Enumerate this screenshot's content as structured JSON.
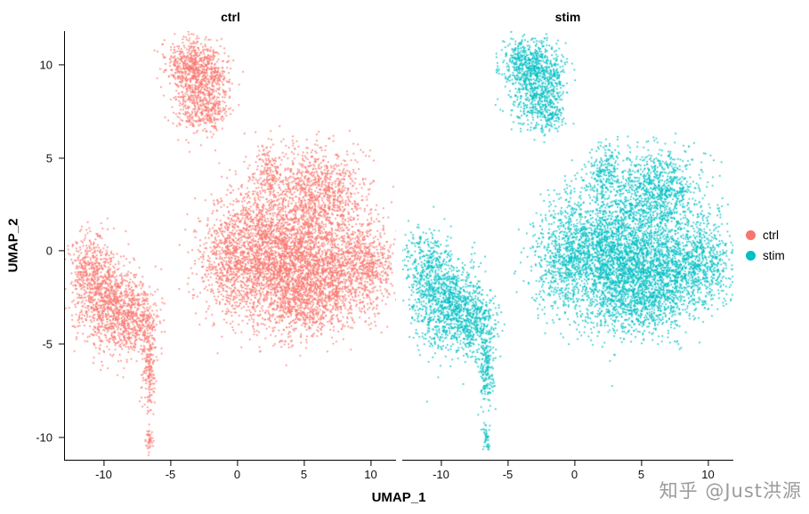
{
  "chart_data": {
    "type": "scatter",
    "title": "",
    "xlabel": "UMAP_1",
    "ylabel": "UMAP_2",
    "xlim": [
      -12.9,
      11.9
    ],
    "ylim": [
      -11.2,
      11.8
    ],
    "xticks": [
      -10,
      -5,
      0,
      5,
      10
    ],
    "yticks": [
      -10,
      -5,
      0,
      5,
      10
    ],
    "grid": false,
    "legend_position": "right",
    "facets": [
      {
        "label": "ctrl",
        "color": "#F8766D"
      },
      {
        "label": "stim",
        "color": "#00BFC4"
      }
    ],
    "legend": [
      {
        "label": "ctrl",
        "color": "#F8766D"
      },
      {
        "label": "stim",
        "color": "#00BFC4"
      }
    ],
    "description": "Single-cell UMAP embedding split into two facets (ctrl vs stim). Same cluster topology in both panels: a small blob at top around (-3, 9), one large central/right mass around (2..10, -4..5) with an upper-right lobe, a left cluster around (-9.5, -3) with a thin vertical tail down to y=-8.5, a tiny sliver near (-6.6, -10), and a couple of stray points near (9.7, 5.3). Clusters approximated below as gaussian mixture components (cx, cy = center in data units; sx, sy = std dev; n = point count).",
    "clusters": [
      {
        "cx": -3.6,
        "cy": 10.0,
        "sx": 0.9,
        "sy": 0.7,
        "n": 450
      },
      {
        "cx": -2.0,
        "cy": 9.4,
        "sx": 0.8,
        "sy": 0.8,
        "n": 300
      },
      {
        "cx": -3.0,
        "cy": 7.9,
        "sx": 0.9,
        "sy": 0.8,
        "n": 320
      },
      {
        "cx": -1.7,
        "cy": 7.4,
        "sx": 0.5,
        "sy": 0.5,
        "n": 110
      },
      {
        "cx": 2.5,
        "cy": 0.0,
        "sx": 2.0,
        "sy": 1.8,
        "n": 2100
      },
      {
        "cx": 6.5,
        "cy": -1.0,
        "sx": 2.0,
        "sy": 1.4,
        "n": 1500
      },
      {
        "cx": 6.3,
        "cy": 3.2,
        "sx": 1.6,
        "sy": 1.1,
        "n": 850
      },
      {
        "cx": 9.7,
        "cy": -0.6,
        "sx": 1.1,
        "sy": 1.2,
        "n": 450
      },
      {
        "cx": -0.7,
        "cy": -0.6,
        "sx": 1.2,
        "sy": 1.5,
        "n": 550
      },
      {
        "cx": 2.4,
        "cy": 4.3,
        "sx": 0.6,
        "sy": 0.8,
        "n": 180
      },
      {
        "cx": 4.6,
        "cy": -3.0,
        "sx": 1.8,
        "sy": 0.8,
        "n": 450
      },
      {
        "cx": -9.4,
        "cy": -3.0,
        "sx": 1.3,
        "sy": 1.2,
        "n": 950
      },
      {
        "cx": -11.0,
        "cy": -0.9,
        "sx": 0.9,
        "sy": 1.0,
        "n": 380
      },
      {
        "cx": -7.4,
        "cy": -3.9,
        "sx": 0.8,
        "sy": 0.9,
        "n": 300
      },
      {
        "cx": -6.6,
        "cy": -6.2,
        "sx": 0.28,
        "sy": 1.2,
        "n": 190
      },
      {
        "cx": -6.6,
        "cy": -10.1,
        "sx": 0.14,
        "sy": 0.35,
        "n": 40
      },
      {
        "cx": 9.7,
        "cy": 5.3,
        "sx": 0.15,
        "sy": 0.1,
        "n": 2
      }
    ]
  },
  "watermark": {
    "text": "知乎 @Just洪源"
  }
}
